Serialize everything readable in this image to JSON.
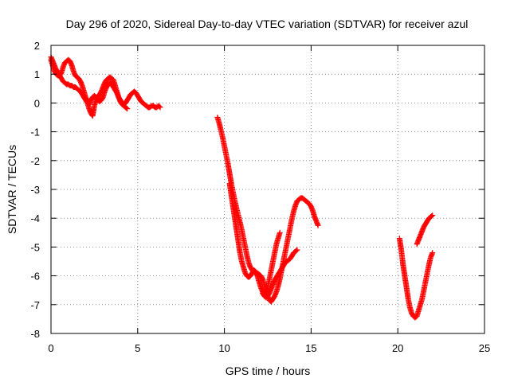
{
  "chart_data": {
    "type": "scatter",
    "title": "Day 296 of 2020, Sidereal Day-to-day VTEC variation (SDTVAR) for receiver azul",
    "xlabel": "GPS time / hours",
    "ylabel": "SDTVAR / TECUs",
    "xlim": [
      0,
      25
    ],
    "ylim": [
      -8,
      2
    ],
    "x_ticks": [
      0,
      5,
      10,
      15,
      20,
      25
    ],
    "y_ticks": [
      -8,
      -7,
      -6,
      -5,
      -4,
      -3,
      -2,
      -1,
      0,
      1,
      2
    ],
    "grid": true,
    "grid_style": "dotted",
    "marker": "plus",
    "series_color": "#ff0000",
    "series": [
      {
        "segments": [
          {
            "x": [
              0.0,
              0.1,
              0.2,
              0.3,
              0.4,
              0.5,
              0.6,
              0.7,
              0.8,
              0.9,
              1.0,
              1.1,
              1.2,
              1.3,
              1.4,
              1.5,
              1.6,
              1.7,
              1.8,
              1.9,
              2.0,
              2.1,
              2.2,
              2.3,
              2.4,
              2.5,
              2.6,
              2.7,
              2.8,
              2.9,
              3.0,
              3.1,
              3.2,
              3.3,
              3.4,
              3.5,
              3.6,
              3.7,
              3.8,
              3.9,
              4.0,
              4.1,
              4.2,
              4.3,
              4.4
            ],
            "y": [
              1.6,
              1.45,
              1.3,
              1.15,
              1.05,
              0.95,
              0.85,
              0.75,
              0.7,
              0.65,
              0.65,
              0.6,
              0.6,
              0.55,
              0.55,
              0.5,
              0.45,
              0.4,
              0.3,
              0.2,
              0.1,
              0.0,
              -0.2,
              -0.35,
              -0.45,
              -0.1,
              0.1,
              0.2,
              0.3,
              0.4,
              0.55,
              0.7,
              0.8,
              0.85,
              0.9,
              0.85,
              0.8,
              0.6,
              0.4,
              0.2,
              0.05,
              -0.05,
              -0.1,
              -0.15,
              -0.2
            ]
          },
          {
            "x": [
              0.0,
              0.1,
              0.2,
              0.3,
              0.4,
              0.5,
              0.6,
              0.7,
              0.8,
              0.9,
              1.0,
              1.1,
              1.2,
              1.3,
              1.4,
              1.5,
              1.6,
              1.7,
              1.8,
              1.9,
              2.0,
              2.1,
              2.2,
              2.3,
              2.4,
              2.5,
              2.6,
              2.7,
              2.8,
              2.9,
              3.0,
              3.1,
              3.2,
              3.3,
              3.4,
              3.5,
              3.6,
              3.7,
              3.8,
              3.9,
              4.0,
              4.1,
              4.2,
              4.3,
              4.4,
              4.5,
              4.6,
              4.7,
              4.8,
              4.9,
              5.0,
              5.1,
              5.2,
              5.3,
              5.4,
              5.5,
              5.6,
              5.7,
              5.8,
              5.9,
              6.0,
              6.1,
              6.2,
              6.3
            ],
            "y": [
              1.5,
              1.3,
              1.1,
              1.0,
              0.95,
              0.95,
              1.05,
              1.25,
              1.4,
              1.45,
              1.5,
              1.45,
              1.3,
              1.1,
              0.95,
              0.9,
              0.85,
              0.75,
              0.6,
              0.4,
              0.2,
              0.05,
              -0.05,
              0.1,
              0.2,
              0.25,
              0.2,
              0.1,
              0.05,
              0.1,
              0.2,
              0.4,
              0.55,
              0.65,
              0.7,
              0.65,
              0.55,
              0.45,
              0.35,
              0.2,
              0.1,
              0.0,
              -0.05,
              0.0,
              0.1,
              0.2,
              0.3,
              0.35,
              0.4,
              0.35,
              0.25,
              0.15,
              0.05,
              0.0,
              -0.05,
              -0.1,
              -0.15,
              -0.15,
              -0.1,
              -0.1,
              -0.15,
              -0.15,
              -0.1,
              -0.15
            ]
          },
          {
            "x": [
              9.6,
              9.7,
              9.8,
              9.9,
              10.0,
              10.1,
              10.2,
              10.3,
              10.4,
              10.5,
              10.6,
              10.7,
              10.8,
              10.9,
              11.0,
              11.1,
              11.2,
              11.3,
              11.4,
              11.5,
              11.6,
              11.7,
              11.8,
              11.9,
              12.0,
              12.1,
              12.2,
              12.3,
              12.4,
              12.5,
              12.6,
              12.7,
              12.8,
              12.9,
              13.0,
              13.1,
              13.2,
              13.3,
              13.4,
              13.5,
              13.6,
              13.7,
              13.8,
              13.9,
              14.0,
              14.1,
              14.2,
              14.3,
              14.4,
              14.5,
              14.6,
              14.7,
              14.8,
              14.9,
              15.0,
              15.1,
              15.2,
              15.3,
              15.4
            ],
            "y": [
              -0.5,
              -0.7,
              -0.95,
              -1.2,
              -1.5,
              -1.8,
              -2.1,
              -2.45,
              -2.8,
              -3.1,
              -3.4,
              -3.65,
              -3.9,
              -4.15,
              -4.4,
              -4.7,
              -5.0,
              -5.3,
              -5.55,
              -5.7,
              -5.8,
              -5.85,
              -5.9,
              -5.9,
              -5.95,
              -6.0,
              -6.1,
              -6.3,
              -6.5,
              -6.7,
              -6.85,
              -6.9,
              -6.8,
              -6.7,
              -6.55,
              -6.35,
              -6.1,
              -5.8,
              -5.5,
              -5.2,
              -4.9,
              -4.6,
              -4.3,
              -4.0,
              -3.75,
              -3.55,
              -3.4,
              -3.35,
              -3.3,
              -3.3,
              -3.35,
              -3.4,
              -3.45,
              -3.5,
              -3.6,
              -3.75,
              -3.95,
              -4.1,
              -4.25
            ]
          },
          {
            "x": [
              10.3,
              10.4,
              10.5,
              10.6,
              10.7,
              10.8,
              10.9,
              11.0,
              11.1,
              11.2,
              11.3,
              11.4,
              11.5,
              11.6,
              11.7,
              11.8,
              11.9,
              12.0,
              12.1,
              12.2,
              12.3,
              12.4,
              12.5,
              12.6,
              12.7,
              12.8,
              12.9,
              13.0,
              13.1,
              13.2
            ],
            "y": [
              -2.8,
              -3.2,
              -3.6,
              -4.0,
              -4.4,
              -4.8,
              -5.2,
              -5.5,
              -5.7,
              -5.9,
              -6.0,
              -6.05,
              -6.0,
              -5.9,
              -5.8,
              -5.85,
              -6.0,
              -6.2,
              -6.4,
              -6.55,
              -6.65,
              -6.6,
              -6.4,
              -6.1,
              -5.8,
              -5.5,
              -5.2,
              -4.9,
              -4.7,
              -4.5
            ]
          },
          {
            "x": [
              12.2,
              12.3,
              12.4,
              12.5,
              12.6,
              12.7,
              12.8,
              12.9,
              13.0,
              13.1,
              13.2,
              13.3,
              13.4,
              13.5,
              13.6,
              13.7,
              13.8,
              13.9,
              14.0,
              14.1,
              14.2
            ],
            "y": [
              -6.6,
              -6.7,
              -6.75,
              -6.7,
              -6.6,
              -6.45,
              -6.3,
              -6.15,
              -6.05,
              -5.95,
              -5.85,
              -5.75,
              -5.65,
              -5.55,
              -5.5,
              -5.45,
              -5.4,
              -5.3,
              -5.2,
              -5.15,
              -5.1
            ]
          },
          {
            "x": [
              20.1,
              20.2,
              20.3,
              20.4,
              20.5,
              20.6,
              20.7,
              20.8,
              20.9,
              21.0,
              21.1,
              21.2,
              21.3,
              21.4,
              21.5,
              21.6,
              21.7,
              21.8,
              21.9,
              22.0
            ],
            "y": [
              -4.7,
              -5.1,
              -5.6,
              -6.0,
              -6.4,
              -6.8,
              -7.1,
              -7.3,
              -7.4,
              -7.45,
              -7.4,
              -7.2,
              -7.0,
              -6.8,
              -6.5,
              -6.2,
              -5.9,
              -5.6,
              -5.35,
              -5.2
            ]
          },
          {
            "x": [
              21.1,
              21.2,
              21.3,
              21.4,
              21.5,
              21.6,
              21.7,
              21.8,
              21.9,
              22.0
            ],
            "y": [
              -4.9,
              -4.75,
              -4.6,
              -4.45,
              -4.3,
              -4.2,
              -4.1,
              -4.0,
              -3.95,
              -3.9
            ]
          }
        ]
      }
    ]
  }
}
